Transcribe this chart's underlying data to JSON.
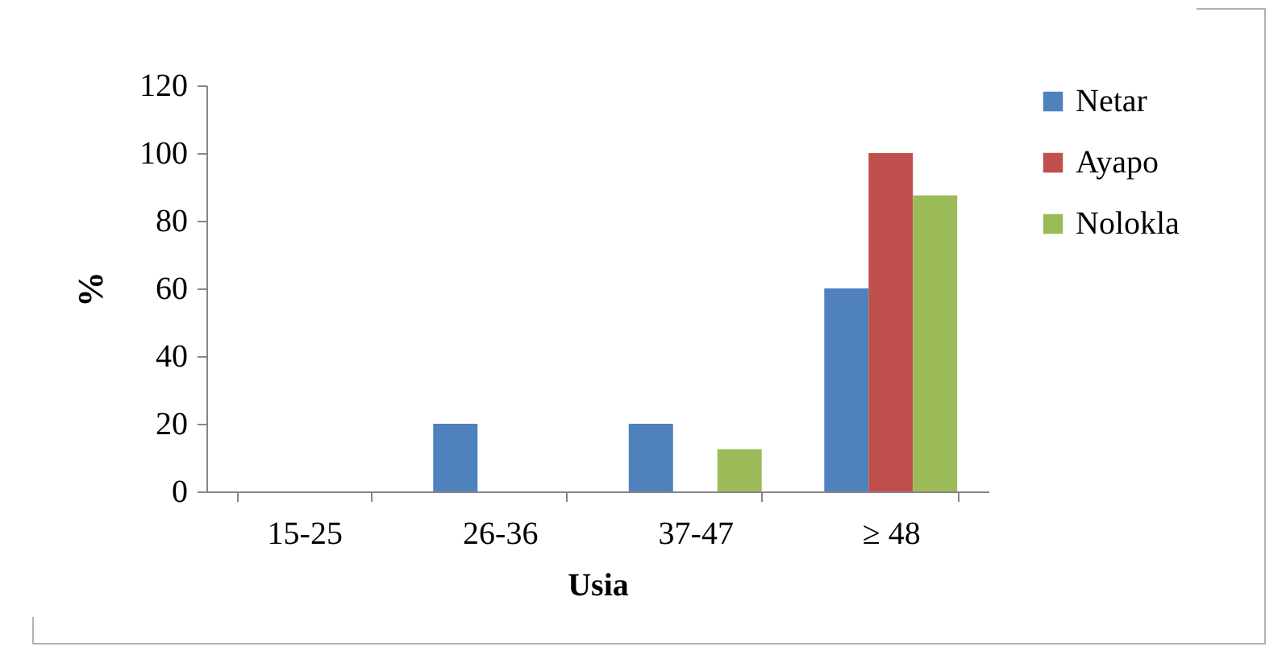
{
  "chart_data": {
    "type": "bar",
    "categories": [
      "15-25",
      "26-36",
      "37-47",
      "≥ 48"
    ],
    "xlabel": "Usia",
    "ylabel": "%",
    "series": [
      {
        "name": "Netar",
        "color": "#4f81bd",
        "values": [
          0,
          20,
          20,
          60
        ]
      },
      {
        "name": "Ayapo",
        "color": "#c0504d",
        "values": [
          0,
          0,
          0,
          100
        ]
      },
      {
        "name": "Nolokla",
        "color": "#9bbb59",
        "values": [
          0,
          0,
          12.5,
          87.5
        ]
      }
    ],
    "ylim": [
      0,
      120
    ],
    "yticks": [
      0,
      20,
      40,
      60,
      80,
      100,
      120
    ],
    "grid": false,
    "legend": "right"
  }
}
